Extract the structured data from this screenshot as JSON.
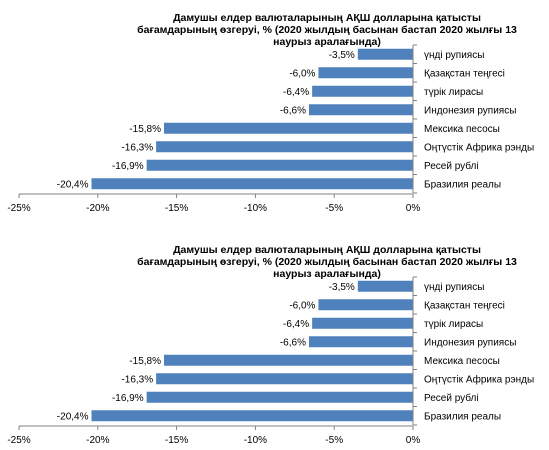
{
  "chart_data": [
    {
      "type": "bar",
      "orientation": "horizontal",
      "title_lines": [
        "Дамушы елдер валюталарының АҚШ долларына қатысты",
        "бағамдарының өзгеруі, %  (2020 жылдың басынан бастап 2020 жылғы 13",
        "наурыз аралағында)"
      ],
      "categories": [
        "үнді рупиясы",
        "Қазақстан теңгесі",
        "түрік лирасы",
        "Индонезия рупиясы",
        "Мексика песосы",
        "Оңтүстік Африка рэнды",
        "Ресей рублі",
        "Бразилия реалы"
      ],
      "values": [
        -3.5,
        -6.0,
        -6.4,
        -6.6,
        -15.8,
        -16.3,
        -16.9,
        -20.4
      ],
      "value_labels": [
        "-3,5%",
        "-6,0%",
        "-6,4%",
        "-6,6%",
        "-15,8%",
        "-16,3%",
        "-16,9%",
        "-20,4%"
      ],
      "x_ticks": [
        -25,
        -20,
        -15,
        -10,
        -5,
        0
      ],
      "x_tick_labels": [
        "-25%",
        "-20%",
        "-15%",
        "-10%",
        "-5%",
        "0%"
      ],
      "xlim": [
        -25,
        0
      ],
      "grid": false,
      "colors": {
        "bar": "#4f81bd",
        "axis": "#808080"
      }
    },
    {
      "type": "bar",
      "orientation": "horizontal",
      "title_lines": [
        "Дамушы елдер валюталарының АҚШ долларына қатысты",
        "бағамдарының өзгеруі, %  (2020 жылдың басынан бастап 2020 жылғы 13",
        "наурыз аралағында)"
      ],
      "categories": [
        "үнді рупиясы",
        "Қазақстан теңгесі",
        "түрік лирасы",
        "Индонезия рупиясы",
        "Мексика песосы",
        "Оңтүстік Африка рэнды",
        "Ресей рублі",
        "Бразилия реалы"
      ],
      "values": [
        -3.5,
        -6.0,
        -6.4,
        -6.6,
        -15.8,
        -16.3,
        -16.9,
        -20.4
      ],
      "value_labels": [
        "-3,5%",
        "-6,0%",
        "-6,4%",
        "-6,6%",
        "-15,8%",
        "-16,3%",
        "-16,9%",
        "-20,4%"
      ],
      "x_ticks": [
        -25,
        -20,
        -15,
        -10,
        -5,
        0
      ],
      "x_tick_labels": [
        "-25%",
        "-20%",
        "-15%",
        "-10%",
        "-5%",
        "0%"
      ],
      "xlim": [
        -25,
        0
      ],
      "grid": false,
      "colors": {
        "bar": "#4f81bd",
        "axis": "#808080"
      }
    }
  ]
}
